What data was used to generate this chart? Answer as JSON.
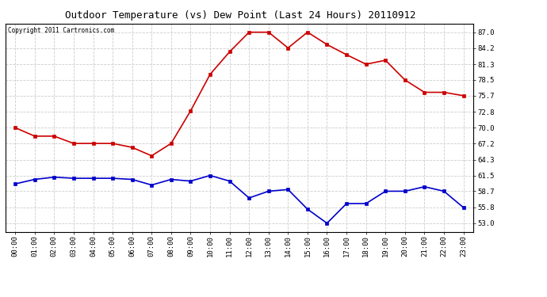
{
  "title": "Outdoor Temperature (vs) Dew Point (Last 24 Hours) 20110912",
  "copyright": "Copyright 2011 Cartronics.com",
  "hours": [
    "00:00",
    "01:00",
    "02:00",
    "03:00",
    "04:00",
    "05:00",
    "06:00",
    "07:00",
    "08:00",
    "09:00",
    "10:00",
    "11:00",
    "12:00",
    "13:00",
    "14:00",
    "15:00",
    "16:00",
    "17:00",
    "18:00",
    "19:00",
    "20:00",
    "21:00",
    "22:00",
    "23:00"
  ],
  "temp": [
    70.0,
    68.5,
    68.5,
    67.2,
    67.2,
    67.2,
    66.5,
    65.0,
    67.2,
    73.0,
    79.5,
    83.5,
    87.0,
    87.0,
    84.2,
    87.0,
    84.8,
    83.0,
    81.3,
    82.0,
    78.5,
    76.3,
    76.3,
    75.7
  ],
  "dew": [
    60.0,
    60.8,
    61.2,
    61.0,
    61.0,
    61.0,
    60.8,
    59.8,
    60.8,
    60.5,
    61.5,
    60.5,
    57.5,
    58.7,
    59.0,
    55.5,
    53.0,
    56.5,
    56.5,
    58.7,
    58.7,
    59.5,
    58.7,
    55.8
  ],
  "temp_color": "#cc0000",
  "dew_color": "#0000cc",
  "bg_color": "#ffffff",
  "plot_bg_color": "#ffffff",
  "grid_color": "#cccccc",
  "yticks": [
    53.0,
    55.8,
    58.7,
    61.5,
    64.3,
    67.2,
    70.0,
    72.8,
    75.7,
    78.5,
    81.3,
    84.2,
    87.0
  ],
  "ylim": [
    51.5,
    88.5
  ],
  "marker": "s",
  "marker_size": 2.5,
  "linewidth": 1.2,
  "title_fontsize": 9,
  "tick_fontsize": 6.5,
  "copyright_fontsize": 5.5
}
